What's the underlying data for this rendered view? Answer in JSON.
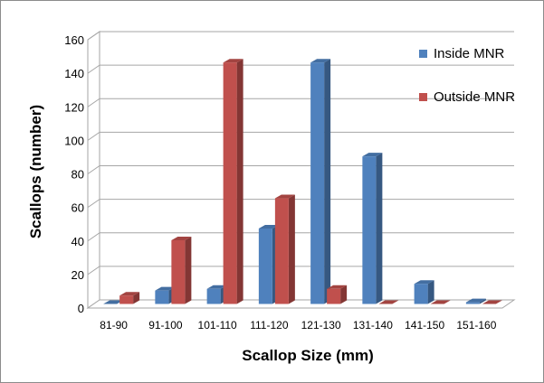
{
  "chart_data": {
    "type": "bar",
    "categories": [
      "81-90",
      "91-100",
      "101-110",
      "111-120",
      "121-130",
      "131-140",
      "141-150",
      "151-160"
    ],
    "series": [
      {
        "name": "Inside MNR",
        "values": [
          0,
          8,
          9,
          45,
          144,
          88,
          12,
          1
        ],
        "color": "#4f81bd"
      },
      {
        "name": "Outside MNR",
        "values": [
          5,
          38,
          144,
          63,
          9,
          0,
          0,
          0
        ],
        "color": "#c0504d"
      }
    ],
    "xlabel": "Scallop Size (mm)",
    "ylabel": "Scallops (number)",
    "ylim": [
      0,
      160
    ],
    "yticks": [
      0,
      20,
      40,
      60,
      80,
      100,
      120,
      140,
      160
    ],
    "grid": true,
    "legend_position": "right"
  }
}
